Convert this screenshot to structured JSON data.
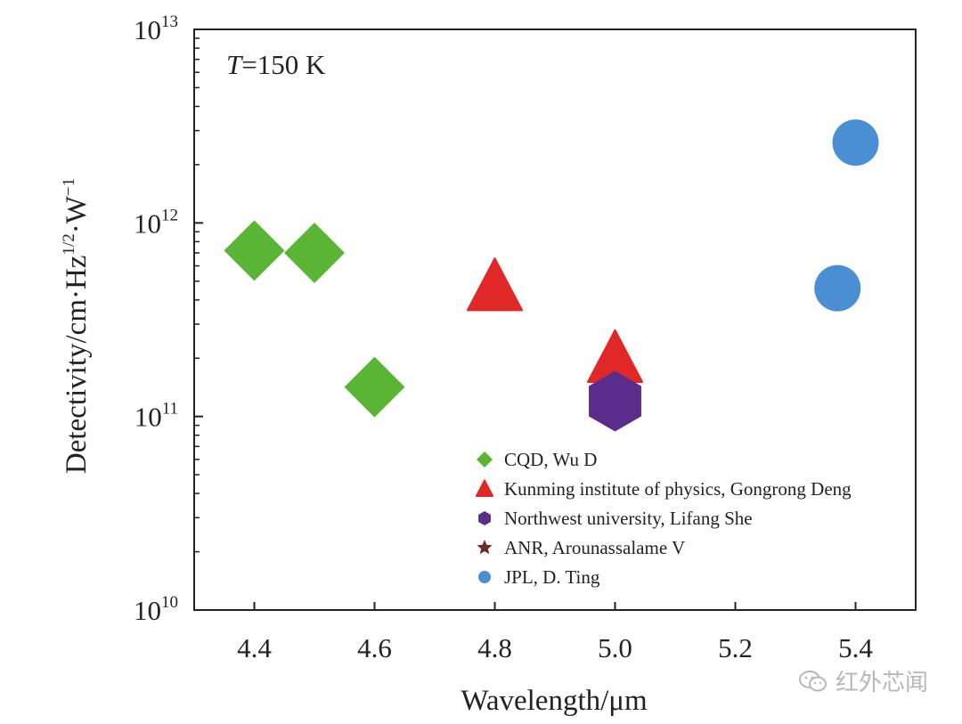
{
  "chart_data": {
    "type": "scatter",
    "title": "",
    "annotation": {
      "var": "T",
      "rest": "=150 K"
    },
    "xlabel": "Wavelength/μm",
    "ylabel": "Detectivity/cm·Hz^{1/2}·W^{−1}",
    "ylabel_parts": {
      "main": "Detectivity/cm·Hz",
      "sup1": "1/2",
      "mid": "·W",
      "sup2": "−1"
    },
    "xlim": [
      4.3,
      5.5
    ],
    "ylim_log10": [
      10,
      13
    ],
    "yscale": "log",
    "xticks": [
      4.4,
      4.6,
      4.8,
      5.0,
      5.2,
      5.4
    ],
    "xtick_labels": [
      "4.4",
      "4.6",
      "4.8",
      "5.0",
      "5.2",
      "5.4"
    ],
    "yticks_exp": [
      10,
      11,
      12,
      13
    ],
    "ytick_base": "10",
    "legend_position": "lower-center",
    "series": [
      {
        "name": "CQD, Wu D",
        "marker": "diamond",
        "color": "#5bb534",
        "points": [
          {
            "x": 4.4,
            "y": 720000000000.0
          },
          {
            "x": 4.5,
            "y": 700000000000.0
          },
          {
            "x": 4.6,
            "y": 142000000000.0
          }
        ]
      },
      {
        "name": "Kunming institute of physics, Gongrong Deng",
        "marker": "triangle",
        "color": "#e02828",
        "points": [
          {
            "x": 4.8,
            "y": 470000000000.0
          },
          {
            "x": 5.0,
            "y": 200000000000.0
          }
        ]
      },
      {
        "name": "Northwest university, Lifang She",
        "marker": "hexagon",
        "color": "#5a2d8c",
        "points": [
          {
            "x": 5.0,
            "y": 120000000000.0
          }
        ]
      },
      {
        "name": "ANR, Arounassalame V",
        "marker": "star",
        "color": "#6b2a2a",
        "points": []
      },
      {
        "name": "JPL, D. Ting",
        "marker": "circle",
        "color": "#4a8fd4",
        "points": [
          {
            "x": 5.4,
            "y": 2600000000000.0
          },
          {
            "x": 5.37,
            "y": 460000000000.0
          }
        ]
      }
    ]
  },
  "watermark": {
    "text": "红外芯闻",
    "icon": "wechat-icon"
  }
}
